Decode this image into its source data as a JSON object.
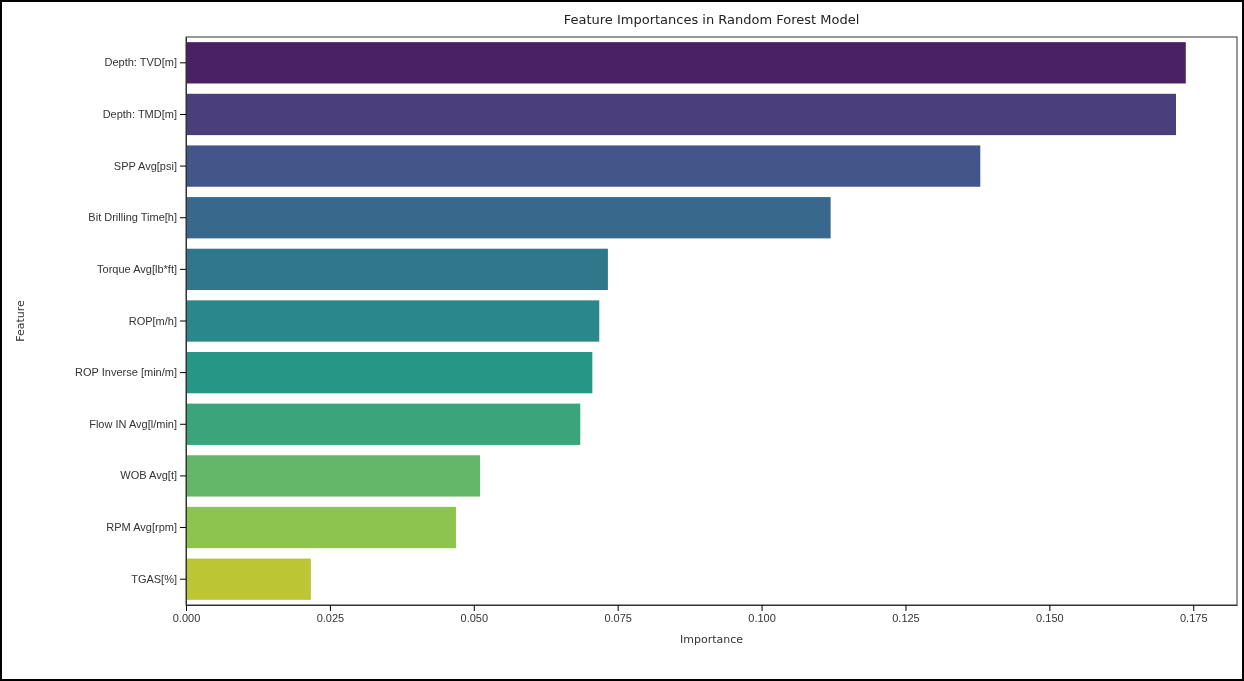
{
  "chart_data": {
    "type": "bar",
    "orientation": "horizontal",
    "title": "Feature Importances in Random Forest Model",
    "xlabel": "Importance",
    "ylabel": "Feature",
    "categories": [
      "Depth: TVD[m]",
      "Depth: TMD[m]",
      "SPP Avg[psi]",
      "Bit Drilling Time[h]",
      "Torque Avg[lb*ft]",
      "ROP[m/h]",
      "ROP Inverse [min/m]",
      "Flow IN  Avg[l/min]",
      "WOB Avg[t]",
      "RPM  Avg[rpm]",
      "TGAS[%]"
    ],
    "values": [
      0.1737,
      0.172,
      0.138,
      0.112,
      0.0733,
      0.0718,
      0.0706,
      0.0685,
      0.0511,
      0.0469,
      0.0217
    ],
    "colors": [
      "#4a2165",
      "#4a3f7c",
      "#43568a",
      "#39688d",
      "#31778c",
      "#2a878b",
      "#269686",
      "#3aa57a",
      "#64b768",
      "#8dc44e",
      "#bcc634"
    ],
    "xlim": [
      0,
      0.1826
    ],
    "xticks": [
      {
        "value": 0,
        "label": "0.000"
      },
      {
        "value": 0.025,
        "label": "0.025"
      },
      {
        "value": 0.05,
        "label": "0.050"
      },
      {
        "value": 0.075,
        "label": "0.075"
      },
      {
        "value": 0.1,
        "label": "0.100"
      },
      {
        "value": 0.125,
        "label": "0.125"
      },
      {
        "value": 0.15,
        "label": "0.150"
      },
      {
        "value": 0.175,
        "label": "0.175"
      }
    ]
  }
}
